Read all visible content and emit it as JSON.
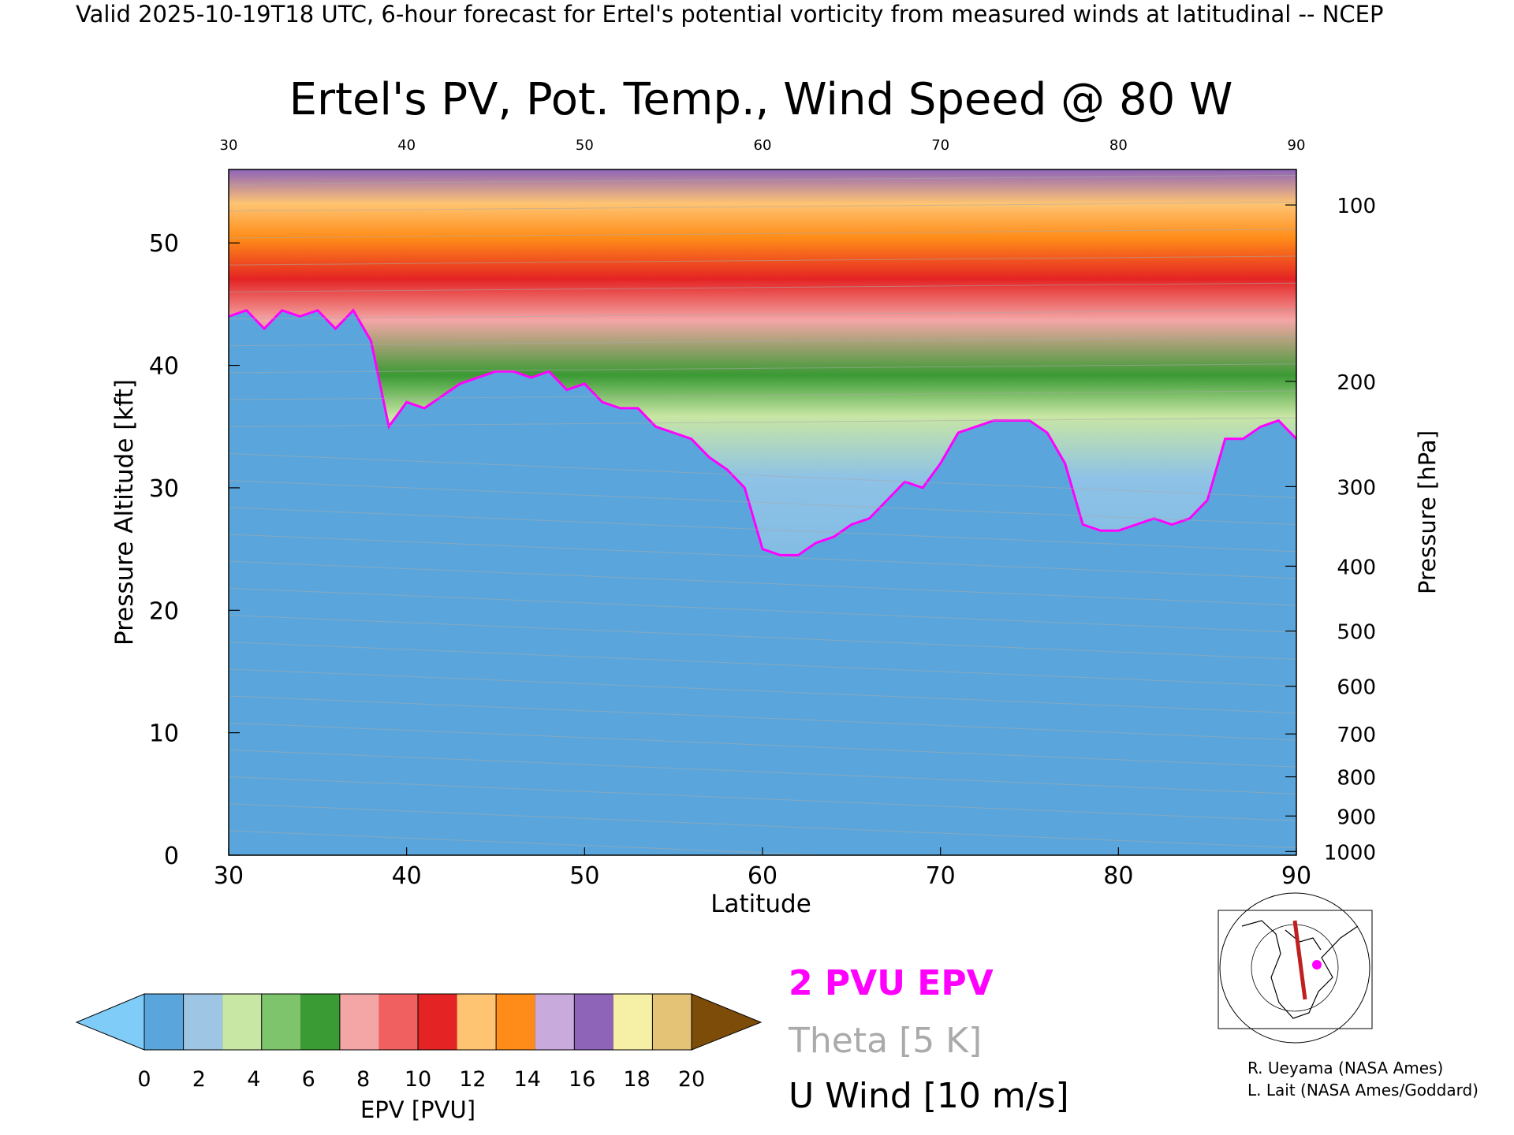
{
  "header_text": "Valid 2025-10-19T18 UTC, 6-hour forecast for Ertel's potential vorticity from measured winds at latitudinal -- NCEP",
  "chart_data": {
    "type": "heatmap",
    "title": "Ertel's PV, Pot. Temp., Wind Speed @ 80 W",
    "xlabel": "Latitude",
    "ylabel": "Pressure Altitude [kft]",
    "ylabel_right": "Pressure [hPa]",
    "xlim": [
      30,
      90
    ],
    "ylim": [
      0,
      56
    ],
    "x_ticks": [
      "30",
      "40",
      "50",
      "60",
      "70",
      "80",
      "90"
    ],
    "y_ticks": [
      "0",
      "10",
      "20",
      "30",
      "40",
      "50"
    ],
    "pressure_ticks": [
      {
        "label": "100",
        "kft": 53.1
      },
      {
        "label": "200",
        "kft": 38.7
      },
      {
        "label": "300",
        "kft": 30.1
      },
      {
        "label": "400",
        "kft": 23.6
      },
      {
        "label": "500",
        "kft": 18.3
      },
      {
        "label": "600",
        "kft": 13.8
      },
      {
        "label": "700",
        "kft": 9.9
      },
      {
        "label": "800",
        "kft": 6.4
      },
      {
        "label": "900",
        "kft": 3.2
      },
      {
        "label": "1000",
        "kft": 0.3
      }
    ],
    "tropopause_2pvu_kft": {
      "lat": [
        30,
        31,
        32,
        33,
        34,
        35,
        36,
        37,
        38,
        39,
        40,
        41,
        42,
        43,
        44,
        45,
        46,
        47,
        48,
        49,
        50,
        51,
        52,
        53,
        54,
        55,
        56,
        57,
        58,
        59,
        60,
        61,
        62,
        63,
        64,
        65,
        66,
        67,
        68,
        69,
        70,
        71,
        72,
        73,
        74,
        75,
        76,
        77,
        78,
        79,
        80,
        81,
        82,
        83,
        84,
        85,
        86,
        87,
        88,
        89,
        90
      ],
      "kft": [
        44,
        44.5,
        43,
        44.5,
        44,
        44.5,
        43,
        44.5,
        42,
        35,
        37,
        36.5,
        37.5,
        38.5,
        39,
        39.5,
        39.5,
        39,
        39.5,
        38,
        38.5,
        37,
        36.5,
        36.5,
        35,
        34.5,
        34,
        32.5,
        31.5,
        30,
        25,
        24.5,
        24.5,
        25.5,
        26,
        27,
        27.5,
        29,
        30.5,
        30,
        32,
        34.5,
        35,
        35.5,
        35.5,
        35.5,
        34.5,
        32,
        27,
        26.5,
        26.5,
        27,
        27.5,
        27,
        27.5,
        29,
        34,
        34,
        35,
        35.5,
        34
      ]
    },
    "colorbar": {
      "label": "EPV [PVU]",
      "ticks": [
        "0",
        "2",
        "4",
        "6",
        "8",
        "10",
        "12",
        "14",
        "16",
        "18",
        "20"
      ],
      "colors": [
        "#80ccf8",
        "#5aa6dc",
        "#9ec6e4",
        "#c8e6a4",
        "#7ec46c",
        "#3a9a34",
        "#f4a6a6",
        "#f06060",
        "#e42424",
        "#ffc472",
        "#ff8c18",
        "#c8aadc",
        "#8e64b8",
        "#f6f0a6",
        "#e4c276",
        "#7c4c08"
      ]
    },
    "legend": [
      {
        "name": "2 PVU EPV",
        "color": "#ff00ff"
      },
      {
        "name": "Theta [5 K]",
        "color": "#aaaaaa"
      },
      {
        "name": "U Wind [10 m/s]",
        "color": "#000000"
      }
    ],
    "credits": [
      "R. Ueyama (NASA Ames)",
      "L. Lait (NASA Ames/Goddard)"
    ]
  },
  "colors": {
    "tropopause": "#ff00ff",
    "theta": "#aaaaaa",
    "wind": "#000000",
    "map_track": "#c02020",
    "map_marker": "#ff00ff"
  }
}
